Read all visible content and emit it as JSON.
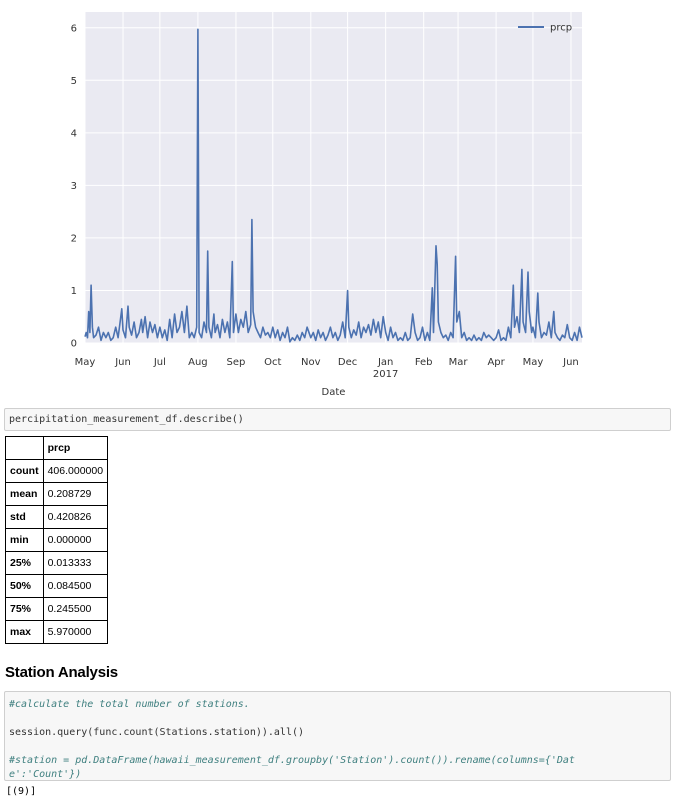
{
  "chart_data": {
    "type": "line",
    "xlabel": "Date",
    "ylabel": "",
    "ylim": [
      0,
      6.3
    ],
    "yticks": [
      0,
      1,
      2,
      3,
      4,
      5,
      6
    ],
    "x_tick_labels": [
      {
        "label": "May",
        "sub": ""
      },
      {
        "label": "Jun",
        "sub": ""
      },
      {
        "label": "Jul",
        "sub": ""
      },
      {
        "label": "Aug",
        "sub": ""
      },
      {
        "label": "Sep",
        "sub": ""
      },
      {
        "label": "Oct",
        "sub": ""
      },
      {
        "label": "Nov",
        "sub": ""
      },
      {
        "label": "Dec",
        "sub": ""
      },
      {
        "label": "Jan",
        "sub": "2017"
      },
      {
        "label": "Feb",
        "sub": ""
      },
      {
        "label": "Mar",
        "sub": ""
      },
      {
        "label": "Apr",
        "sub": ""
      },
      {
        "label": "May",
        "sub": ""
      },
      {
        "label": "Jun",
        "sub": ""
      }
    ],
    "x_tick_dates": [
      "2016-05-01",
      "2016-06-01",
      "2016-07-01",
      "2016-08-01",
      "2016-09-01",
      "2016-10-01",
      "2016-11-01",
      "2016-12-01",
      "2017-01-01",
      "2017-02-01",
      "2017-03-01",
      "2017-04-01",
      "2017-05-01",
      "2017-06-01"
    ],
    "xlim": [
      "2016-05-01",
      "2017-06-10"
    ],
    "grid": true,
    "legend": {
      "position": "top-right",
      "entries": [
        "prcp"
      ]
    },
    "series": [
      {
        "name": "prcp",
        "color": "#4c72b0",
        "points": [
          [
            "2016-05-01",
            0.12
          ],
          [
            "2016-05-02",
            0.2
          ],
          [
            "2016-05-03",
            0.1
          ],
          [
            "2016-05-04",
            0.6
          ],
          [
            "2016-05-05",
            0.2
          ],
          [
            "2016-05-06",
            1.1
          ],
          [
            "2016-05-07",
            0.3
          ],
          [
            "2016-05-08",
            0.1
          ],
          [
            "2016-05-10",
            0.15
          ],
          [
            "2016-05-12",
            0.3
          ],
          [
            "2016-05-14",
            0.05
          ],
          [
            "2016-05-16",
            0.2
          ],
          [
            "2016-05-18",
            0.1
          ],
          [
            "2016-05-20",
            0.2
          ],
          [
            "2016-05-22",
            0.05
          ],
          [
            "2016-05-24",
            0.1
          ],
          [
            "2016-05-26",
            0.3
          ],
          [
            "2016-05-28",
            0.1
          ],
          [
            "2016-05-31",
            0.65
          ],
          [
            "2016-06-01",
            0.25
          ],
          [
            "2016-06-03",
            0.1
          ],
          [
            "2016-06-05",
            0.7
          ],
          [
            "2016-06-06",
            0.3
          ],
          [
            "2016-06-08",
            0.15
          ],
          [
            "2016-06-10",
            0.4
          ],
          [
            "2016-06-12",
            0.1
          ],
          [
            "2016-06-14",
            0.2
          ],
          [
            "2016-06-16",
            0.45
          ],
          [
            "2016-06-17",
            0.2
          ],
          [
            "2016-06-19",
            0.5
          ],
          [
            "2016-06-21",
            0.1
          ],
          [
            "2016-06-23",
            0.4
          ],
          [
            "2016-06-25",
            0.2
          ],
          [
            "2016-06-27",
            0.35
          ],
          [
            "2016-06-29",
            0.1
          ],
          [
            "2016-07-01",
            0.3
          ],
          [
            "2016-07-03",
            0.1
          ],
          [
            "2016-07-05",
            0.25
          ],
          [
            "2016-07-07",
            0.05
          ],
          [
            "2016-07-09",
            0.45
          ],
          [
            "2016-07-11",
            0.1
          ],
          [
            "2016-07-13",
            0.55
          ],
          [
            "2016-07-15",
            0.2
          ],
          [
            "2016-07-17",
            0.3
          ],
          [
            "2016-07-19",
            0.6
          ],
          [
            "2016-07-21",
            0.2
          ],
          [
            "2016-07-23",
            0.7
          ],
          [
            "2016-07-25",
            0.1
          ],
          [
            "2016-07-27",
            0.2
          ],
          [
            "2016-07-29",
            0.1
          ],
          [
            "2016-07-31",
            0.3
          ],
          [
            "2016-08-01",
            5.97
          ],
          [
            "2016-08-02",
            0.2
          ],
          [
            "2016-08-04",
            0.1
          ],
          [
            "2016-08-06",
            0.4
          ],
          [
            "2016-08-08",
            0.2
          ],
          [
            "2016-08-09",
            1.75
          ],
          [
            "2016-08-10",
            0.3
          ],
          [
            "2016-08-12",
            0.1
          ],
          [
            "2016-08-14",
            0.55
          ],
          [
            "2016-08-15",
            0.2
          ],
          [
            "2016-08-17",
            0.35
          ],
          [
            "2016-08-19",
            0.1
          ],
          [
            "2016-08-21",
            0.45
          ],
          [
            "2016-08-23",
            0.2
          ],
          [
            "2016-08-25",
            0.4
          ],
          [
            "2016-08-27",
            0.1
          ],
          [
            "2016-08-29",
            1.55
          ],
          [
            "2016-08-30",
            0.2
          ],
          [
            "2016-09-01",
            0.55
          ],
          [
            "2016-09-03",
            0.2
          ],
          [
            "2016-09-05",
            0.45
          ],
          [
            "2016-09-07",
            0.3
          ],
          [
            "2016-09-09",
            0.6
          ],
          [
            "2016-09-11",
            0.2
          ],
          [
            "2016-09-13",
            0.35
          ],
          [
            "2016-09-14",
            2.35
          ],
          [
            "2016-09-15",
            0.6
          ],
          [
            "2016-09-17",
            0.3
          ],
          [
            "2016-09-19",
            0.2
          ],
          [
            "2016-09-21",
            0.1
          ],
          [
            "2016-09-23",
            0.3
          ],
          [
            "2016-09-25",
            0.15
          ],
          [
            "2016-09-27",
            0.2
          ],
          [
            "2016-09-29",
            0.1
          ],
          [
            "2016-10-01",
            0.3
          ],
          [
            "2016-10-03",
            0.1
          ],
          [
            "2016-10-05",
            0.25
          ],
          [
            "2016-10-07",
            0.05
          ],
          [
            "2016-10-09",
            0.2
          ],
          [
            "2016-10-11",
            0.1
          ],
          [
            "2016-10-13",
            0.3
          ],
          [
            "2016-10-15",
            0.02
          ],
          [
            "2016-10-17",
            0.1
          ],
          [
            "2016-10-19",
            0.05
          ],
          [
            "2016-10-21",
            0.15
          ],
          [
            "2016-10-23",
            0.05
          ],
          [
            "2016-10-25",
            0.2
          ],
          [
            "2016-10-27",
            0.1
          ],
          [
            "2016-10-29",
            0.3
          ],
          [
            "2016-11-01",
            0.1
          ],
          [
            "2016-11-03",
            0.2
          ],
          [
            "2016-11-05",
            0.05
          ],
          [
            "2016-11-07",
            0.25
          ],
          [
            "2016-11-09",
            0.1
          ],
          [
            "2016-11-11",
            0.2
          ],
          [
            "2016-11-13",
            0.05
          ],
          [
            "2016-11-15",
            0.15
          ],
          [
            "2016-11-17",
            0.3
          ],
          [
            "2016-11-19",
            0.1
          ],
          [
            "2016-11-21",
            0.2
          ],
          [
            "2016-11-23",
            0.05
          ],
          [
            "2016-11-25",
            0.15
          ],
          [
            "2016-11-27",
            0.4
          ],
          [
            "2016-11-29",
            0.1
          ],
          [
            "2016-12-01",
            1.0
          ],
          [
            "2016-12-02",
            0.3
          ],
          [
            "2016-12-04",
            0.1
          ],
          [
            "2016-12-06",
            0.25
          ],
          [
            "2016-12-08",
            0.15
          ],
          [
            "2016-12-10",
            0.4
          ],
          [
            "2016-12-12",
            0.1
          ],
          [
            "2016-12-14",
            0.3
          ],
          [
            "2016-12-16",
            0.2
          ],
          [
            "2016-12-18",
            0.35
          ],
          [
            "2016-12-20",
            0.15
          ],
          [
            "2016-12-22",
            0.45
          ],
          [
            "2016-12-24",
            0.2
          ],
          [
            "2016-12-26",
            0.4
          ],
          [
            "2016-12-28",
            0.1
          ],
          [
            "2016-12-30",
            0.5
          ],
          [
            "2017-01-01",
            0.2
          ],
          [
            "2017-01-03",
            0.05
          ],
          [
            "2017-01-05",
            0.3
          ],
          [
            "2017-01-07",
            0.1
          ],
          [
            "2017-01-09",
            0.2
          ],
          [
            "2017-01-11",
            0.05
          ],
          [
            "2017-01-13",
            0.1
          ],
          [
            "2017-01-15",
            0.05
          ],
          [
            "2017-01-17",
            0.2
          ],
          [
            "2017-01-19",
            0.05
          ],
          [
            "2017-01-21",
            0.1
          ],
          [
            "2017-01-23",
            0.55
          ],
          [
            "2017-01-25",
            0.2
          ],
          [
            "2017-01-27",
            0.05
          ],
          [
            "2017-01-29",
            0.1
          ],
          [
            "2017-01-31",
            0.3
          ],
          [
            "2017-02-02",
            0.05
          ],
          [
            "2017-02-04",
            0.2
          ],
          [
            "2017-02-06",
            0.05
          ],
          [
            "2017-02-08",
            1.05
          ],
          [
            "2017-02-09",
            0.2
          ],
          [
            "2017-02-11",
            1.85
          ],
          [
            "2017-02-12",
            1.5
          ],
          [
            "2017-02-13",
            0.4
          ],
          [
            "2017-02-15",
            0.2
          ],
          [
            "2017-02-17",
            0.1
          ],
          [
            "2017-02-19",
            0.15
          ],
          [
            "2017-02-21",
            0.05
          ],
          [
            "2017-02-23",
            0.2
          ],
          [
            "2017-02-25",
            0.1
          ],
          [
            "2017-02-27",
            1.65
          ],
          [
            "2017-02-28",
            0.4
          ],
          [
            "2017-03-02",
            0.6
          ],
          [
            "2017-03-04",
            0.1
          ],
          [
            "2017-03-06",
            0.2
          ],
          [
            "2017-03-08",
            0.05
          ],
          [
            "2017-03-10",
            0.1
          ],
          [
            "2017-03-12",
            0.05
          ],
          [
            "2017-03-14",
            0.15
          ],
          [
            "2017-03-16",
            0.05
          ],
          [
            "2017-03-18",
            0.1
          ],
          [
            "2017-03-20",
            0.05
          ],
          [
            "2017-03-22",
            0.2
          ],
          [
            "2017-03-24",
            0.1
          ],
          [
            "2017-03-26",
            0.15
          ],
          [
            "2017-03-28",
            0.1
          ],
          [
            "2017-03-30",
            0.05
          ],
          [
            "2017-04-01",
            0.1
          ],
          [
            "2017-04-03",
            0.25
          ],
          [
            "2017-04-05",
            0.05
          ],
          [
            "2017-04-07",
            0.1
          ],
          [
            "2017-04-09",
            0.05
          ],
          [
            "2017-04-11",
            0.3
          ],
          [
            "2017-04-13",
            0.1
          ],
          [
            "2017-04-15",
            1.1
          ],
          [
            "2017-04-16",
            0.3
          ],
          [
            "2017-04-18",
            0.5
          ],
          [
            "2017-04-20",
            0.2
          ],
          [
            "2017-04-22",
            1.4
          ],
          [
            "2017-04-23",
            0.4
          ],
          [
            "2017-04-25",
            0.2
          ],
          [
            "2017-04-27",
            1.35
          ],
          [
            "2017-04-28",
            0.6
          ],
          [
            "2017-04-30",
            0.2
          ],
          [
            "2017-05-01",
            0.3
          ],
          [
            "2017-05-03",
            0.1
          ],
          [
            "2017-05-05",
            0.95
          ],
          [
            "2017-05-06",
            0.4
          ],
          [
            "2017-05-08",
            0.1
          ],
          [
            "2017-05-10",
            0.2
          ],
          [
            "2017-05-12",
            0.15
          ],
          [
            "2017-05-14",
            0.4
          ],
          [
            "2017-05-16",
            0.1
          ],
          [
            "2017-05-18",
            0.6
          ],
          [
            "2017-05-19",
            0.2
          ],
          [
            "2017-05-21",
            0.1
          ],
          [
            "2017-05-23",
            0.05
          ],
          [
            "2017-05-25",
            0.15
          ],
          [
            "2017-05-27",
            0.1
          ],
          [
            "2017-05-29",
            0.35
          ],
          [
            "2017-05-31",
            0.1
          ],
          [
            "2017-06-02",
            0.05
          ],
          [
            "2017-06-04",
            0.2
          ],
          [
            "2017-06-06",
            0.05
          ],
          [
            "2017-06-08",
            0.3
          ],
          [
            "2017-06-10",
            0.1
          ]
        ]
      }
    ]
  },
  "describe_cell": {
    "code": "percipitation_measurement_df.describe()"
  },
  "describe_table": {
    "header": "prcp",
    "rows": [
      {
        "label": "count",
        "value": "406.000000"
      },
      {
        "label": "mean",
        "value": "0.208729"
      },
      {
        "label": "std",
        "value": "0.420826"
      },
      {
        "label": "min",
        "value": "0.000000"
      },
      {
        "label": "25%",
        "value": "0.013333"
      },
      {
        "label": "50%",
        "value": "0.084500"
      },
      {
        "label": "75%",
        "value": "0.245500"
      },
      {
        "label": "max",
        "value": "5.970000"
      }
    ]
  },
  "station_heading": "Station Analysis",
  "station_cell": {
    "comment_line": "#calculate the total number of stations.",
    "code_line": "session.query(func.count(Stations.station)).all()",
    "comment_line2a": "#station = pd.DataFrame(hawaii_measurement_df.groupby('Station').count()).rename(columns={'Dat",
    "comment_line2b": "e':'Count'})"
  },
  "station_output": "[(9)]"
}
